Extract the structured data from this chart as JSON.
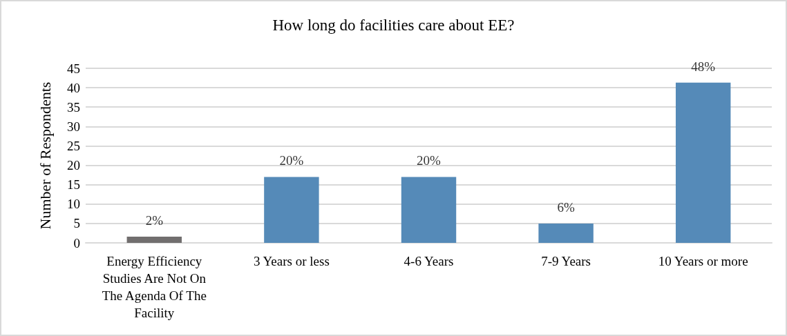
{
  "chart_data": {
    "type": "bar",
    "title": "How long do facilities care about EE?",
    "ylabel": "Number of Respondents",
    "categories": [
      "Energy Efficiency Studies Are Not On The Agenda Of The Facility",
      "3 Years or less",
      "4-6 Years",
      "7-9 Years",
      "10 Years or more"
    ],
    "values": [
      1.6,
      17,
      17,
      5,
      41.3
    ],
    "colors": [
      "#716e6e",
      "#558ab8",
      "#558ab8",
      "#558ab8",
      "#558ab8"
    ],
    "annotations": [
      {
        "text": "2%",
        "x": "Energy Efficiency Studies Are Not On The Agenda Of The Facility",
        "y": 1.6
      },
      {
        "text": "20%",
        "x": "3 Years or less",
        "y": 17
      },
      {
        "text": "20%",
        "x": "4-6 Years",
        "y": 17
      },
      {
        "text": "6%",
        "x": "7-9 Years",
        "y": 5
      },
      {
        "text": "48%",
        "x": "10 Years or more",
        "y": 41.3
      }
    ],
    "ylim": [
      0,
      45
    ],
    "yticks": [
      0,
      5,
      10,
      15,
      20,
      25,
      30,
      35,
      40,
      45
    ],
    "grid": "y"
  }
}
